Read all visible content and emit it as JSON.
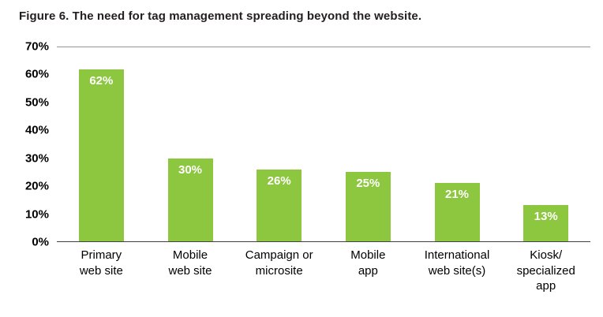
{
  "title": "Figure 6. The need for tag management spreading beyond the website.",
  "chart_data": {
    "type": "bar",
    "title": "Figure 6. The need for tag management spreading beyond the website.",
    "categories": [
      "Primary\nweb site",
      "Mobile\nweb site",
      "Campaign or\nmicrosite",
      "Mobile\napp",
      "International\nweb site(s)",
      "Kiosk/\nspecialized\napp"
    ],
    "values": [
      62,
      30,
      26,
      25,
      21,
      13
    ],
    "value_labels": [
      "62%",
      "30%",
      "26%",
      "25%",
      "21%",
      "13%"
    ],
    "xlabel": "",
    "ylabel": "",
    "ylim": [
      0,
      70
    ],
    "yticks": [
      0,
      10,
      20,
      30,
      40,
      50,
      60,
      70
    ],
    "ytick_labels": [
      "0%",
      "10%",
      "20%",
      "30%",
      "40%",
      "50%",
      "60%",
      "70%"
    ],
    "grid": false,
    "legend": false,
    "colors": {
      "bar": "#8dc63f",
      "value_label": "#ffffff",
      "title_text": "#231f20",
      "axis_text": "#000000",
      "top_line": "#939598",
      "baseline": "#414042"
    }
  }
}
